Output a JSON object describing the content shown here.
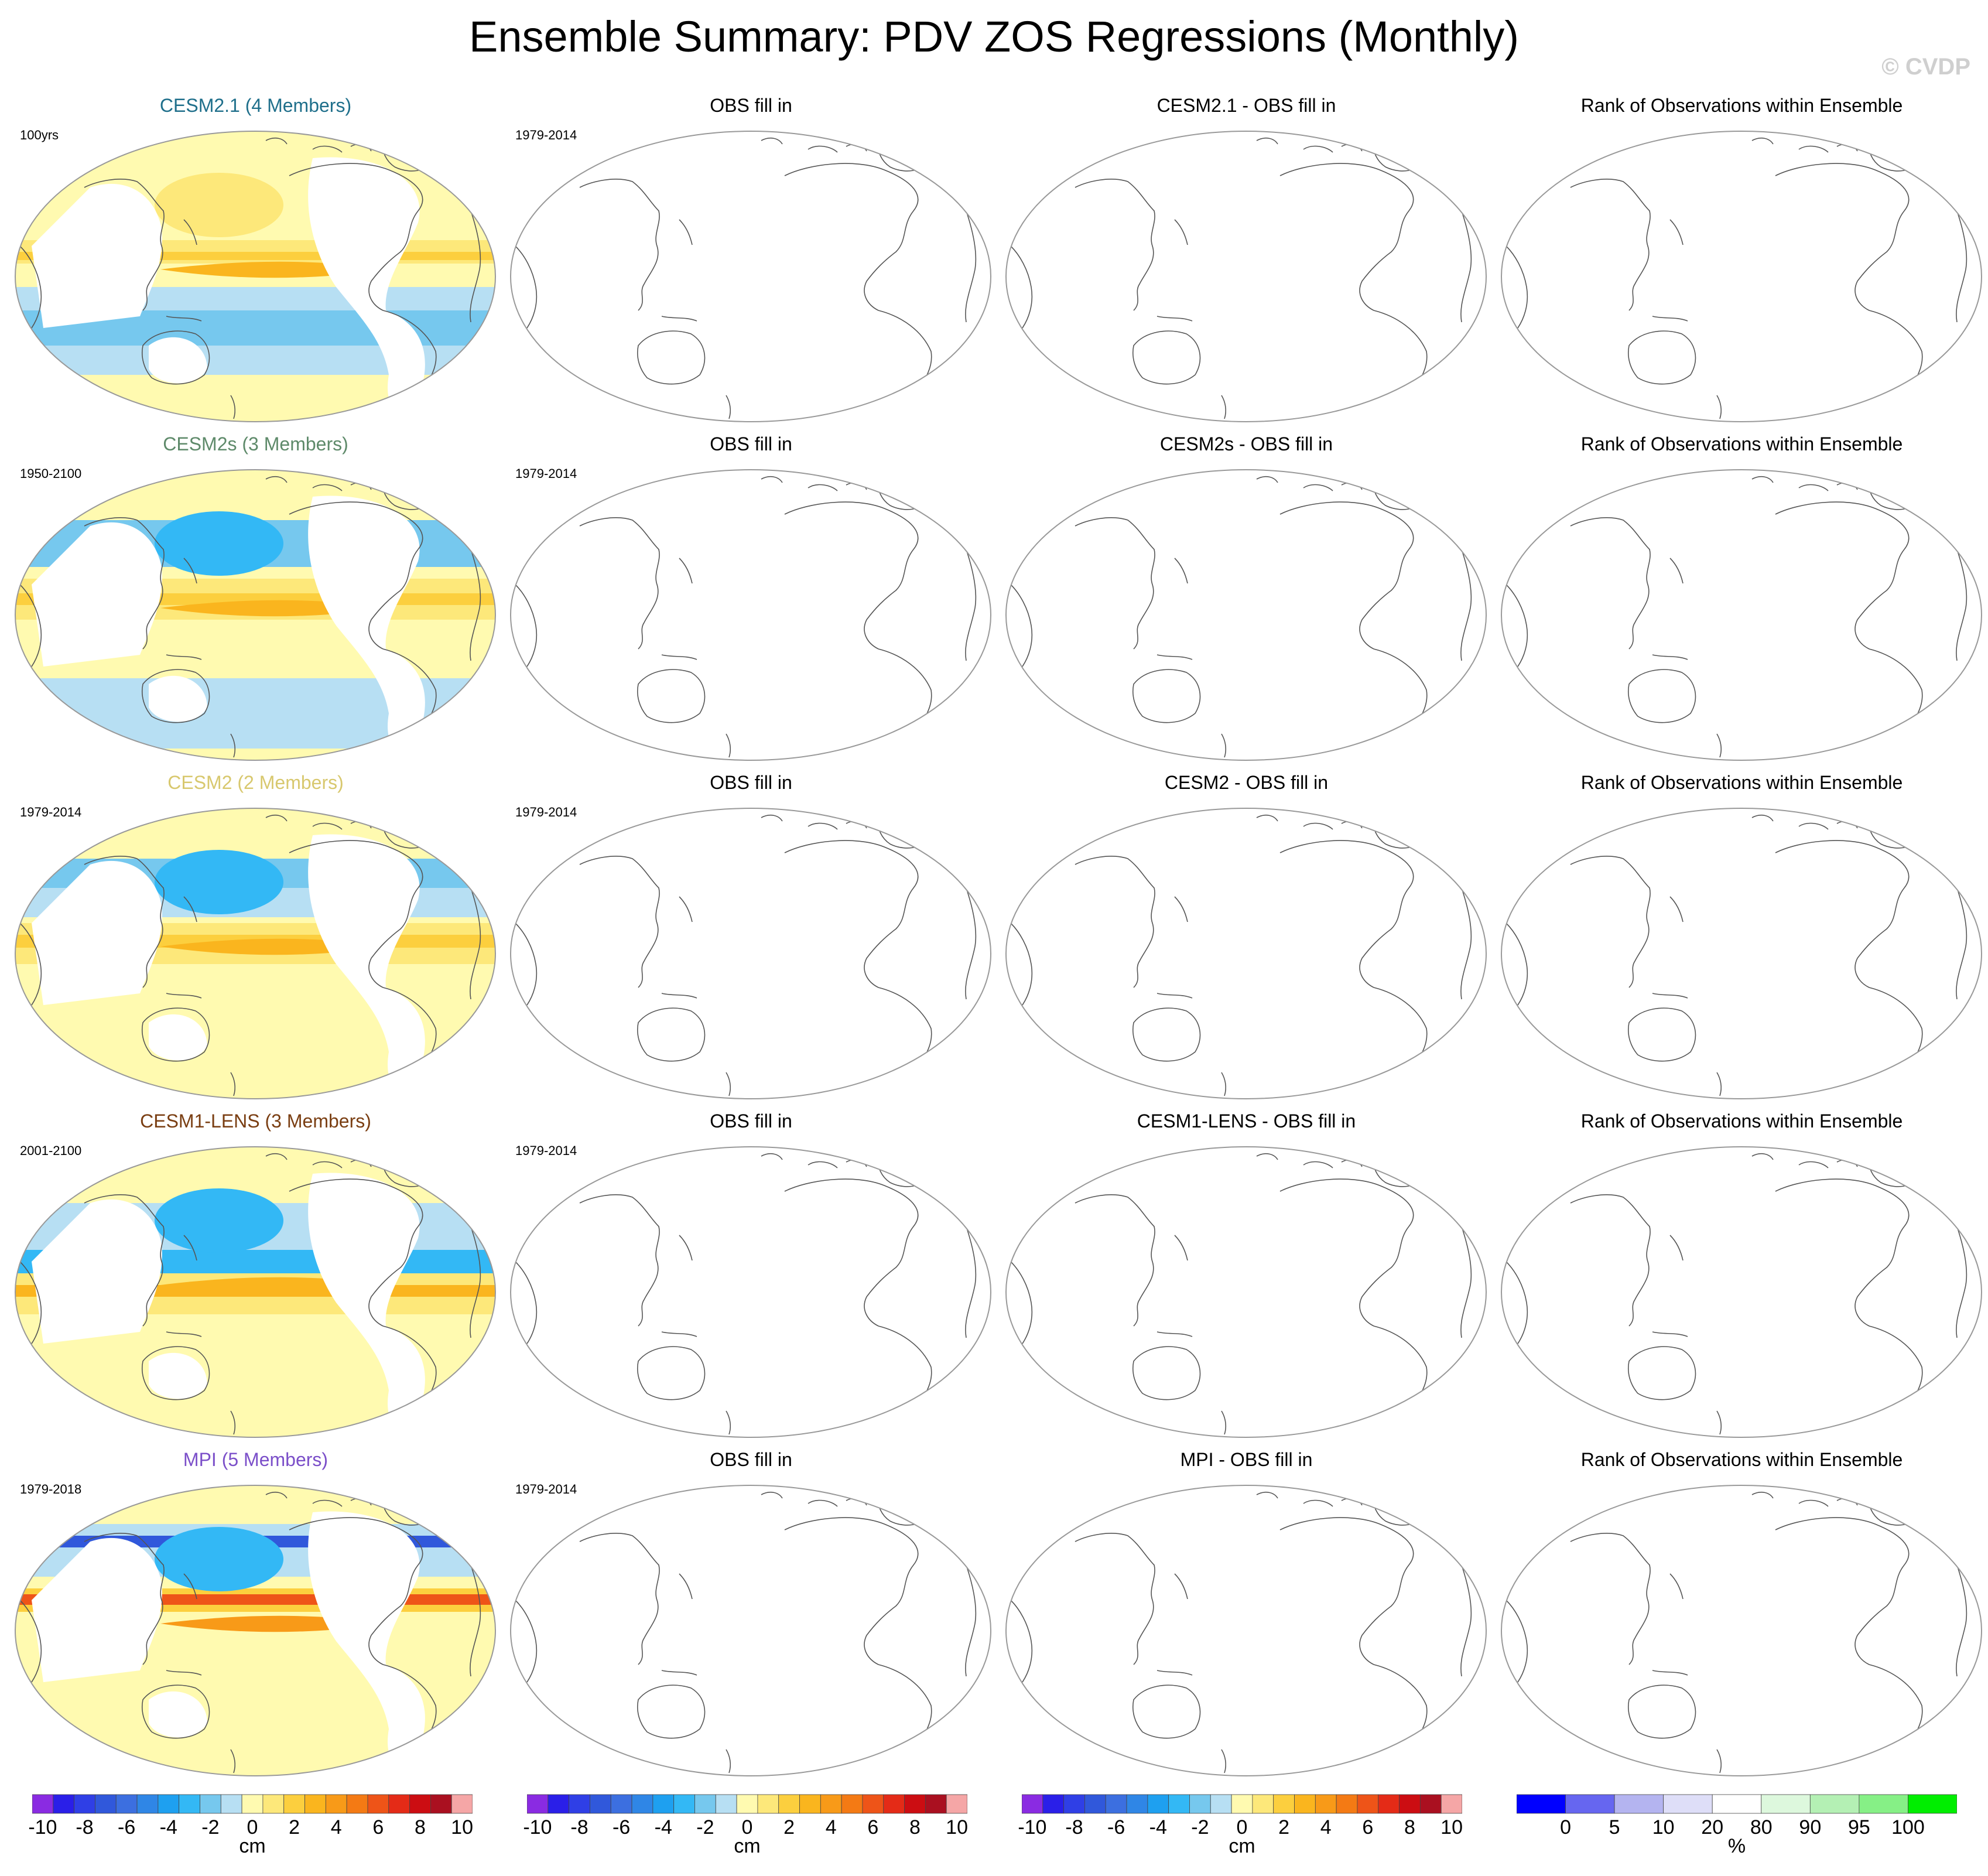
{
  "figure": {
    "title": "Ensemble Summary: PDV ZOS Regressions (Monthly)",
    "watermark": "© CVDP"
  },
  "rows": [
    {
      "model_title": "CESM2.1 (4 Members)",
      "title_color": "#1f6f8b",
      "model_period": "100yrs",
      "obs_title": "OBS fill in",
      "obs_period": "1979-2014",
      "diff_title": "CESM2.1 - OBS fill in",
      "rank_title": "Rank of Observations within Ensemble"
    },
    {
      "model_title": "CESM2s (3 Members)",
      "title_color": "#5e8a6a",
      "model_period": "1950-2100",
      "obs_title": "OBS fill in",
      "obs_period": "1979-2014",
      "diff_title": "CESM2s - OBS fill in",
      "rank_title": "Rank of Observations within Ensemble"
    },
    {
      "model_title": "CESM2 (2 Members)",
      "title_color": "#d8c86e",
      "model_period": "1979-2014",
      "obs_title": "OBS fill in",
      "obs_period": "1979-2014",
      "diff_title": "CESM2 - OBS fill in",
      "rank_title": "Rank of Observations within Ensemble"
    },
    {
      "model_title": "CESM1-LENS (3 Members)",
      "title_color": "#7a3e12",
      "model_period": "2001-2100",
      "obs_title": "OBS fill in",
      "obs_period": "1979-2014",
      "diff_title": "CESM1-LENS - OBS fill in",
      "rank_title": "Rank of Observations within Ensemble"
    },
    {
      "model_title": "MPI (5 Members)",
      "title_color": "#7b4fc9",
      "model_period": "1979-2018",
      "obs_title": "OBS fill in",
      "obs_period": "1979-2014",
      "diff_title": "MPI - OBS fill in",
      "rank_title": "Rank of Observations within Ensemble"
    }
  ],
  "chart_data": [
    {
      "type": "heatmap",
      "description_role": "colorbar",
      "name": "zos-regression-scale",
      "unit": "cm",
      "levels": [
        -10,
        -9,
        -8,
        -7,
        -6,
        -5,
        -4,
        -3,
        -2,
        -1,
        0,
        1,
        2,
        3,
        4,
        5,
        6,
        7,
        8,
        9,
        10
      ],
      "tick_labels": [
        "-10",
        "-8",
        "-6",
        "-4",
        "-2",
        "0",
        "2",
        "4",
        "6",
        "8",
        "10"
      ],
      "tick_values": [
        -10,
        -8,
        -6,
        -4,
        -2,
        0,
        2,
        4,
        6,
        8,
        10
      ],
      "colors": [
        "#8a2be2",
        "#2a1fe8",
        "#2f3fe6",
        "#3058db",
        "#3c6fe0",
        "#2f86e6",
        "#1ea0f0",
        "#33b8f5",
        "#76c8ee",
        "#b7dff3",
        "#fffab0",
        "#fde87a",
        "#fccf3e",
        "#fab51e",
        "#f89a18",
        "#f47a14",
        "#ee5418",
        "#e42b17",
        "#cc0d12",
        "#aa1020",
        "#f5a6a6"
      ]
    },
    {
      "type": "heatmap",
      "description_role": "colorbar",
      "name": "rank-percent-scale",
      "unit": "%",
      "tick_labels": [
        "0",
        "5",
        "10",
        "20",
        "80",
        "90",
        "95",
        "100"
      ],
      "tick_values": [
        0,
        5,
        10,
        20,
        80,
        90,
        95,
        100
      ],
      "colors": [
        "#0000ff",
        "#6666f0",
        "#b4b4f0",
        "#dedef8",
        "#ffffff",
        "#ddf8dd",
        "#b4f0b4",
        "#86f086",
        "#00ee00"
      ]
    }
  ],
  "colorbars": [
    {
      "unit": "cm"
    },
    {
      "unit": "cm"
    },
    {
      "unit": "cm"
    },
    {
      "unit": "%"
    }
  ]
}
